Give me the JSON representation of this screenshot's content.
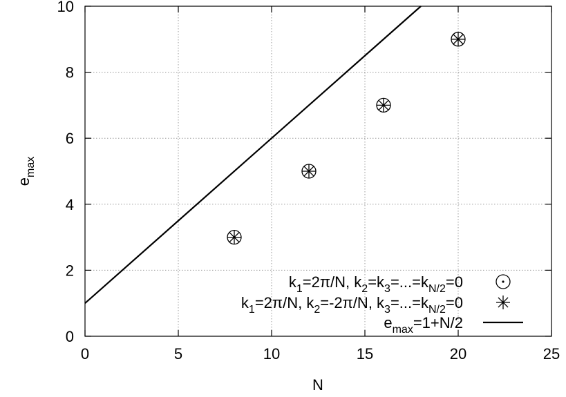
{
  "chart_data": {
    "type": "scatter",
    "xlabel": "N",
    "ylabel": {
      "base": "e",
      "sub": "max"
    },
    "xlim": [
      0,
      25
    ],
    "ylim": [
      0,
      10
    ],
    "x_ticks": [
      "0",
      "5",
      "10",
      "15",
      "20",
      "25"
    ],
    "y_ticks": [
      "0",
      "2",
      "4",
      "6",
      "8",
      "10"
    ],
    "grid": true,
    "legend_position": "bottom-right",
    "series": [
      {
        "marker": "circle-dot",
        "label_parts": [
          {
            "t": "k"
          },
          {
            "t": "1",
            "sub": true
          },
          {
            "t": "=2π/N, k"
          },
          {
            "t": "2",
            "sub": true
          },
          {
            "t": "=k"
          },
          {
            "t": "3",
            "sub": true
          },
          {
            "t": "=...=k"
          },
          {
            "t": "N/2",
            "sub": true
          },
          {
            "t": "=0"
          }
        ],
        "points": [
          [
            8,
            3
          ],
          [
            12,
            5
          ],
          [
            16,
            7
          ],
          [
            20,
            9
          ]
        ]
      },
      {
        "marker": "asterisk",
        "label_parts": [
          {
            "t": "k"
          },
          {
            "t": "1",
            "sub": true
          },
          {
            "t": "=2π/N, k"
          },
          {
            "t": "2",
            "sub": true
          },
          {
            "t": "=-2π/N, k"
          },
          {
            "t": "3",
            "sub": true
          },
          {
            "t": "=...=k"
          },
          {
            "t": "N/2",
            "sub": true
          },
          {
            "t": "=0"
          }
        ],
        "points": [
          [
            8,
            3
          ],
          [
            12,
            5
          ],
          [
            16,
            7
          ],
          [
            20,
            9
          ]
        ]
      },
      {
        "marker": "line",
        "label_parts": [
          {
            "t": "e"
          },
          {
            "t": "max",
            "sub": true
          },
          {
            "t": "=1+N/2"
          }
        ],
        "line": {
          "slope": 0.5,
          "intercept": 1,
          "x_range": [
            0,
            18
          ]
        }
      }
    ]
  }
}
